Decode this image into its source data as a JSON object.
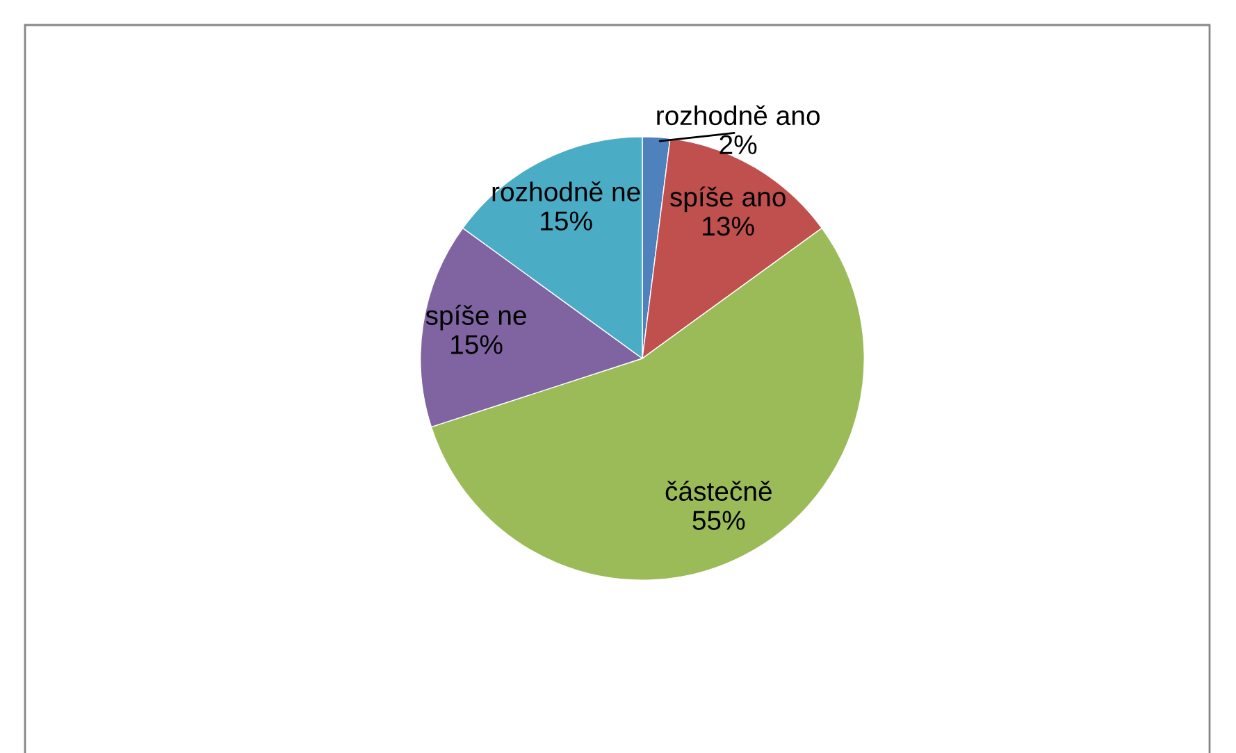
{
  "chart_data": {
    "type": "pie",
    "categories": [
      "rozhodně ano",
      "spíše ano",
      "částečně",
      "spíše ne",
      "rozhodně ne"
    ],
    "values": [
      2,
      13,
      55,
      15,
      15
    ],
    "colors": [
      "#4f81bd",
      "#c0504d",
      "#9bbb59",
      "#8064a2",
      "#4bacc6"
    ],
    "value_labels": [
      "2%",
      "13%",
      "55%",
      "15%",
      "15%"
    ],
    "legend": false
  }
}
